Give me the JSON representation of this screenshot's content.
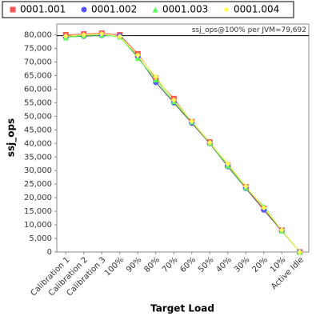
{
  "chart_data": {
    "type": "line",
    "x_label": "Target Load",
    "y_label": "ssj_ops",
    "annotation": "ssj_ops@100% per JVM=79,692",
    "reference_line": 79692,
    "categories": [
      "Calibration 1",
      "Calibration 2",
      "Calibration 3",
      "100%",
      "90%",
      "80%",
      "70%",
      "60%",
      "50%",
      "40%",
      "30%",
      "20%",
      "10%",
      "Active Idle"
    ],
    "series": [
      {
        "name": "0001.001",
        "color": "#ff5555",
        "marker": "square",
        "values": [
          80000,
          80300,
          80600,
          80000,
          73000,
          64000,
          56500,
          48000,
          40500,
          32000,
          24000,
          16000,
          8000,
          0
        ]
      },
      {
        "name": "0001.002",
        "color": "#5555ff",
        "marker": "circle",
        "values": [
          79200,
          79500,
          79800,
          79700,
          72000,
          62500,
          55000,
          47500,
          40000,
          31500,
          23500,
          15500,
          7800,
          0
        ]
      },
      {
        "name": "0001.003",
        "color": "#55ff55",
        "marker": "triangle",
        "values": [
          79000,
          79800,
          80000,
          79300,
          71500,
          63500,
          55500,
          48000,
          40200,
          31800,
          23800,
          16800,
          7900,
          0
        ]
      },
      {
        "name": "0001.004",
        "color": "#ffff55",
        "marker": "diamond",
        "values": [
          79500,
          80000,
          80400,
          79400,
          72500,
          64500,
          56000,
          48200,
          40300,
          32500,
          24200,
          16300,
          8100,
          0
        ]
      }
    ],
    "ylim": [
      0,
      84000
    ],
    "yticks": [
      0,
      {
        "value": 5000,
        "label": "5,000"
      },
      {
        "value": 10000,
        "label": "10,000"
      },
      {
        "value": 15000,
        "label": "15,000"
      },
      {
        "value": 20000,
        "label": "20,000"
      },
      {
        "value": 25000,
        "label": "25,000"
      },
      {
        "value": 30000,
        "label": "30,000"
      },
      {
        "value": 35000,
        "label": "35,000"
      },
      {
        "value": 40000,
        "label": "40,000"
      },
      {
        "value": 45000,
        "label": "45,000"
      },
      {
        "value": 50000,
        "label": "50,000"
      },
      {
        "value": 55000,
        "label": "55,000"
      },
      {
        "value": 60000,
        "label": "60,000"
      },
      {
        "value": 65000,
        "label": "65,000"
      },
      {
        "value": 70000,
        "label": "70,000"
      },
      {
        "value": 75000,
        "label": "75,000"
      },
      {
        "value": 80000,
        "label": "80,000"
      }
    ],
    "grid": false
  }
}
